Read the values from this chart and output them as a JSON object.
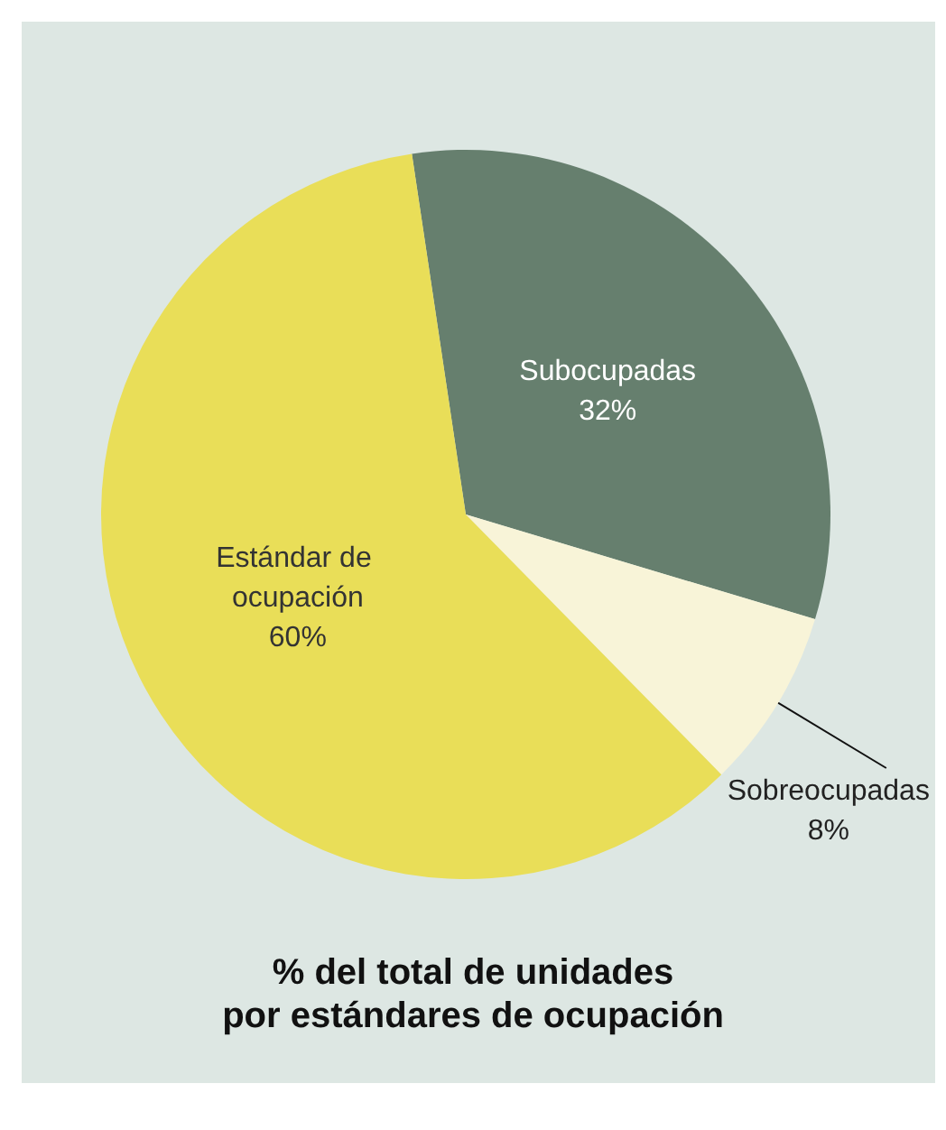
{
  "chart_data": {
    "type": "pie",
    "title": "% del total de unidades\npor estándares de ocupación",
    "categories": [
      "Subocupadas",
      "Sobreocupadas",
      "Estándar de ocupación"
    ],
    "values": [
      32,
      8,
      60
    ],
    "value_labels": [
      "32%",
      "8%",
      "60%"
    ],
    "colors": [
      "#667f6e",
      "#f8f4d8",
      "#e9de58"
    ],
    "legend": false
  }
}
